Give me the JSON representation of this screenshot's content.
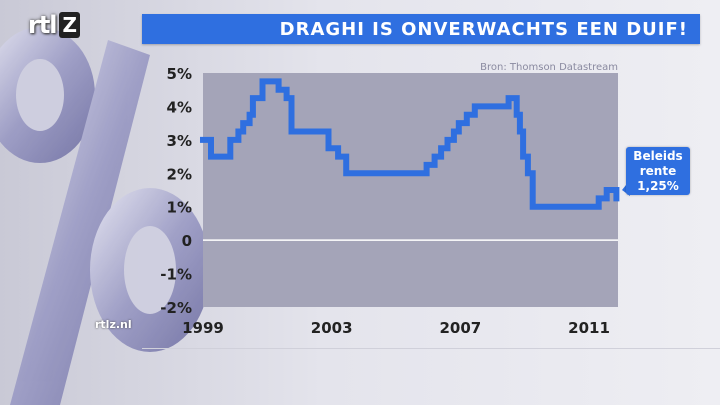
{
  "header": {
    "logo_text": "rtl",
    "logo_suffix": "Z",
    "title": "DRAGHI IS ONVERWACHTS EEN DUIF!"
  },
  "source": "Bron: Thomson Datastream",
  "watermark": "rtlz.nl",
  "annotation": {
    "line1": "Beleids",
    "line2": "rente",
    "line3": "1,25%"
  },
  "colors": {
    "accent": "#2f6fe0",
    "line": "#2f6fe0",
    "plot_bg": "#a4a4b8",
    "zero_line": "#ffffff"
  },
  "chart_data": {
    "type": "line",
    "title": "DRAGHI IS ONVERWACHTS EEN DUIF!",
    "xlabel": "",
    "ylabel": "",
    "xlim": [
      1999,
      2011.9
    ],
    "ylim": [
      -2,
      5
    ],
    "x_ticks": [
      {
        "value": 1999,
        "label": "1999"
      },
      {
        "value": 2003,
        "label": "2003"
      },
      {
        "value": 2007,
        "label": "2007"
      },
      {
        "value": 2011,
        "label": "2011"
      }
    ],
    "y_ticks": [
      {
        "value": 5,
        "label": "5%"
      },
      {
        "value": 4,
        "label": "4%"
      },
      {
        "value": 3,
        "label": "3%"
      },
      {
        "value": 2,
        "label": "2%"
      },
      {
        "value": 1,
        "label": "1%"
      },
      {
        "value": 0,
        "label": "0"
      },
      {
        "value": -1,
        "label": "-1%"
      },
      {
        "value": -2,
        "label": "-2%"
      }
    ],
    "grid": false,
    "step": true,
    "series": [
      {
        "x": [
          1999.0,
          1999.25,
          1999.85,
          2000.1,
          2000.25,
          2000.45,
          2000.55,
          2000.85,
          2001.35,
          2001.6,
          2001.75,
          2002.9,
          2003.2,
          2003.45,
          2005.95,
          2006.2,
          2006.4,
          2006.6,
          2006.8,
          2006.95,
          2007.2,
          2007.45,
          2008.5,
          2008.75,
          2008.85,
          2008.95,
          2009.1,
          2009.25,
          2011.3,
          2011.55,
          2011.85
        ],
        "y": [
          3.0,
          2.5,
          3.0,
          3.25,
          3.5,
          3.75,
          4.25,
          4.75,
          4.5,
          4.25,
          3.25,
          2.75,
          2.5,
          2.0,
          2.25,
          2.5,
          2.75,
          3.0,
          3.25,
          3.5,
          3.75,
          4.0,
          4.25,
          3.75,
          3.25,
          2.5,
          2.0,
          1.0,
          1.25,
          1.5,
          1.25
        ]
      }
    ]
  }
}
